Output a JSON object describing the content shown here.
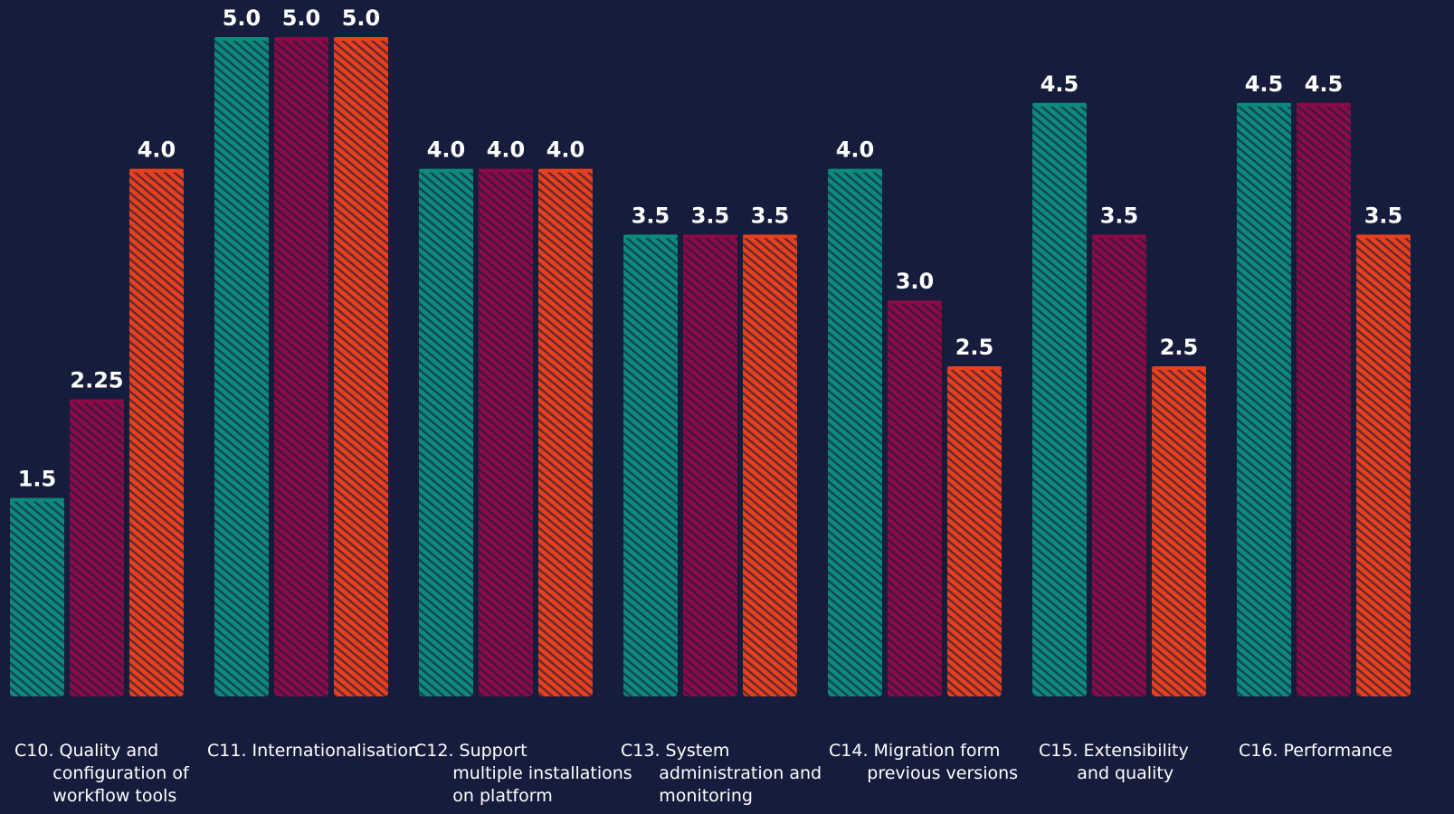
{
  "chart_data": {
    "type": "bar",
    "categories": [
      "C10. Quality and\n       configuration of\n       workflow tools",
      "C11. Internationalisation",
      "C12. Support\n       multiple installations\n       on platform",
      "C13. System\n       administration and\n       monitoring",
      "C14. Migration form\n       previous versions",
      "C15. Extensibility\n       and quality",
      "C16. Performance"
    ],
    "series": [
      {
        "values": [
          1.5,
          5.0,
          4.0,
          3.5,
          4.0,
          4.5,
          4.5
        ],
        "labels": [
          "1.5",
          "5.0",
          "4.0",
          "3.5",
          "4.0",
          "4.5",
          "4.5"
        ]
      },
      {
        "values": [
          2.25,
          5.0,
          4.0,
          3.5,
          3.0,
          3.5,
          4.5
        ],
        "labels": [
          "2.25",
          "5.0",
          "4.0",
          "3.5",
          "3.0",
          "3.5",
          "4.5"
        ]
      },
      {
        "values": [
          4.0,
          5.0,
          4.0,
          3.5,
          2.5,
          2.5,
          3.5
        ],
        "labels": [
          "4.0",
          "5.0",
          "4.0",
          "3.5",
          "2.5",
          "2.5",
          "3.5"
        ]
      }
    ],
    "ylim": [
      0,
      5
    ],
    "grid": false,
    "colors": [
      "#0e8a7c",
      "#8a0b45",
      "#e8401f"
    ],
    "background": "#161d3c"
  }
}
